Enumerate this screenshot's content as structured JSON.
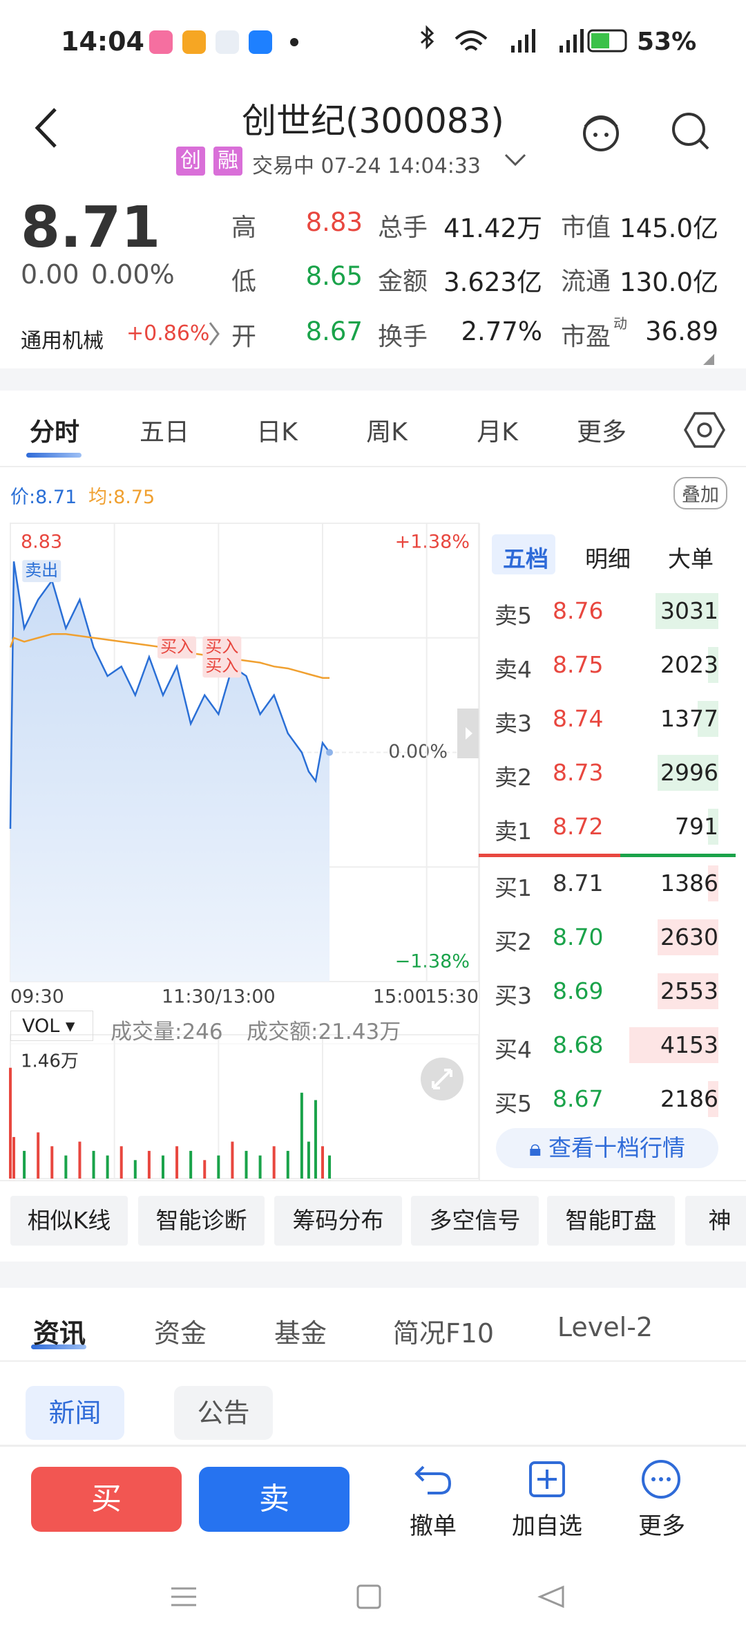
{
  "status_bar": {
    "time": "14:04",
    "battery": "53%"
  },
  "header": {
    "title": "创世纪(300083)",
    "badges": [
      "创",
      "融"
    ],
    "status": "交易中 07-24 14:04:33"
  },
  "quote": {
    "price": "8.71",
    "change": "0.00",
    "change_pct": "0.00%",
    "sector": "通用机械",
    "sector_change": "+0.86%",
    "stats": [
      [
        {
          "label": "高",
          "value": "8.83"
        },
        {
          "label": "总手",
          "value": "41.42万"
        },
        {
          "label": "市值",
          "value": "145.0亿"
        }
      ],
      [
        {
          "label": "低",
          "value": "8.65"
        },
        {
          "label": "金额",
          "value": "3.623亿"
        },
        {
          "label": "流通",
          "value": "130.0亿"
        }
      ],
      [
        {
          "label": "开",
          "value": "8.67"
        },
        {
          "label": "换手",
          "value": "2.77%"
        },
        {
          "label": "市盈",
          "sup": "动",
          "value": "36.89"
        }
      ]
    ]
  },
  "tabs": [
    "分时",
    "五日",
    "日K",
    "周K",
    "月K",
    "更多"
  ],
  "overlay_button": "叠加",
  "chart_data": [
    {
      "type": "line",
      "legend": [
        "价:8.71",
        "均:8.75"
      ],
      "x": [
        0,
        2,
        8,
        16,
        24,
        32,
        40,
        48,
        56,
        64,
        72,
        80,
        88,
        96,
        104,
        112,
        120,
        128,
        136,
        144,
        152,
        160,
        168,
        172,
        176,
        180,
        184
      ],
      "series": [
        {
          "color": "#2a6fd6",
          "values": [
            8.67,
            8.81,
            8.775,
            8.79,
            8.8,
            8.775,
            8.79,
            8.765,
            8.75,
            8.755,
            8.74,
            8.76,
            8.74,
            8.755,
            8.725,
            8.74,
            8.73,
            8.755,
            8.75,
            8.73,
            8.74,
            8.72,
            8.71,
            8.7,
            8.695,
            8.715,
            8.71
          ]
        },
        {
          "color": "#f0a030",
          "values": [
            8.765,
            8.77,
            8.768,
            8.77,
            8.772,
            8.772,
            8.771,
            8.77,
            8.769,
            8.768,
            8.767,
            8.766,
            8.765,
            8.764,
            8.762,
            8.761,
            8.76,
            8.759,
            8.758,
            8.757,
            8.755,
            8.754,
            8.752,
            8.751,
            8.75,
            8.749,
            8.749
          ]
        }
      ],
      "xlim": [
        0,
        270
      ],
      "xticks": [
        {
          "value": 0,
          "label": "09:30"
        },
        {
          "value": 120,
          "label": "11:30/13:00"
        },
        {
          "value": 240,
          "label": "15:00"
        },
        {
          "value": 270,
          "label": "15:30"
        }
      ],
      "ylim": [
        8.59,
        8.83
      ],
      "yticks": [
        8.59,
        8.71,
        8.83
      ],
      "y2lim": [
        -1.38,
        1.38
      ],
      "y2ticks": [
        {
          "value": -1.38,
          "label": "−1.38%"
        },
        {
          "value": 0,
          "label": "0.00%"
        },
        {
          "value": 1.38,
          "label": "+1.38%"
        }
      ],
      "annotations": [
        {
          "text": "卖出",
          "x": 18,
          "y": 8.805
        },
        {
          "text": "买入",
          "x": 96,
          "y": 8.765
        },
        {
          "text": "买入",
          "x": 122,
          "y": 8.765
        },
        {
          "text": "买入",
          "x": 122,
          "y": 8.755
        }
      ]
    },
    {
      "type": "bar",
      "indicator": "VOL",
      "volume": "成交量:246",
      "amount": "成交额:21.43万",
      "x": [
        0,
        2,
        8,
        16,
        24,
        32,
        40,
        48,
        56,
        64,
        72,
        80,
        88,
        96,
        104,
        112,
        120,
        128,
        136,
        144,
        152,
        160,
        168,
        172,
        176,
        180,
        184
      ],
      "values": [
        12000,
        4500,
        3000,
        5000,
        3500,
        2500,
        4000,
        3000,
        2500,
        3500,
        2000,
        3000,
        2500,
        3500,
        3000,
        2000,
        2500,
        4000,
        3000,
        2500,
        3500,
        3000,
        9300,
        4000,
        8500,
        3500,
        2500
      ],
      "xlim": [
        0,
        270
      ],
      "ylim": [
        0,
        14600
      ],
      "yticks": [
        {
          "value": 14600,
          "label": "1.46万"
        }
      ]
    }
  ],
  "order_book": {
    "tabs": [
      "五档",
      "明细",
      "大单"
    ],
    "asks": [
      {
        "label": "卖5",
        "price": "8.76",
        "volume": 3031
      },
      {
        "label": "卖4",
        "price": "8.75",
        "volume": 2023
      },
      {
        "label": "卖3",
        "price": "8.74",
        "volume": 1377
      },
      {
        "label": "卖2",
        "price": "8.73",
        "volume": 2996
      },
      {
        "label": "卖1",
        "price": "8.72",
        "volume": 791
      }
    ],
    "bids": [
      {
        "label": "买1",
        "price": "8.71",
        "volume": 1386
      },
      {
        "label": "买2",
        "price": "8.70",
        "volume": 2630
      },
      {
        "label": "买3",
        "price": "8.69",
        "volume": 2553
      },
      {
        "label": "买4",
        "price": "8.68",
        "volume": 4153
      },
      {
        "label": "买5",
        "price": "8.67",
        "volume": 2186
      }
    ],
    "button": "查看十档行情"
  },
  "tools": [
    "相似K线",
    "智能诊断",
    "筹码分布",
    "多空信号",
    "智能盯盘",
    "神"
  ],
  "news_tabs": [
    "资讯",
    "资金",
    "基金",
    "简况F10",
    "Level-2"
  ],
  "news_subtabs": [
    "新闻",
    "公告"
  ],
  "actions": {
    "buy": "买",
    "sell": "卖",
    "items": [
      "撤单",
      "加自选",
      "更多"
    ]
  }
}
